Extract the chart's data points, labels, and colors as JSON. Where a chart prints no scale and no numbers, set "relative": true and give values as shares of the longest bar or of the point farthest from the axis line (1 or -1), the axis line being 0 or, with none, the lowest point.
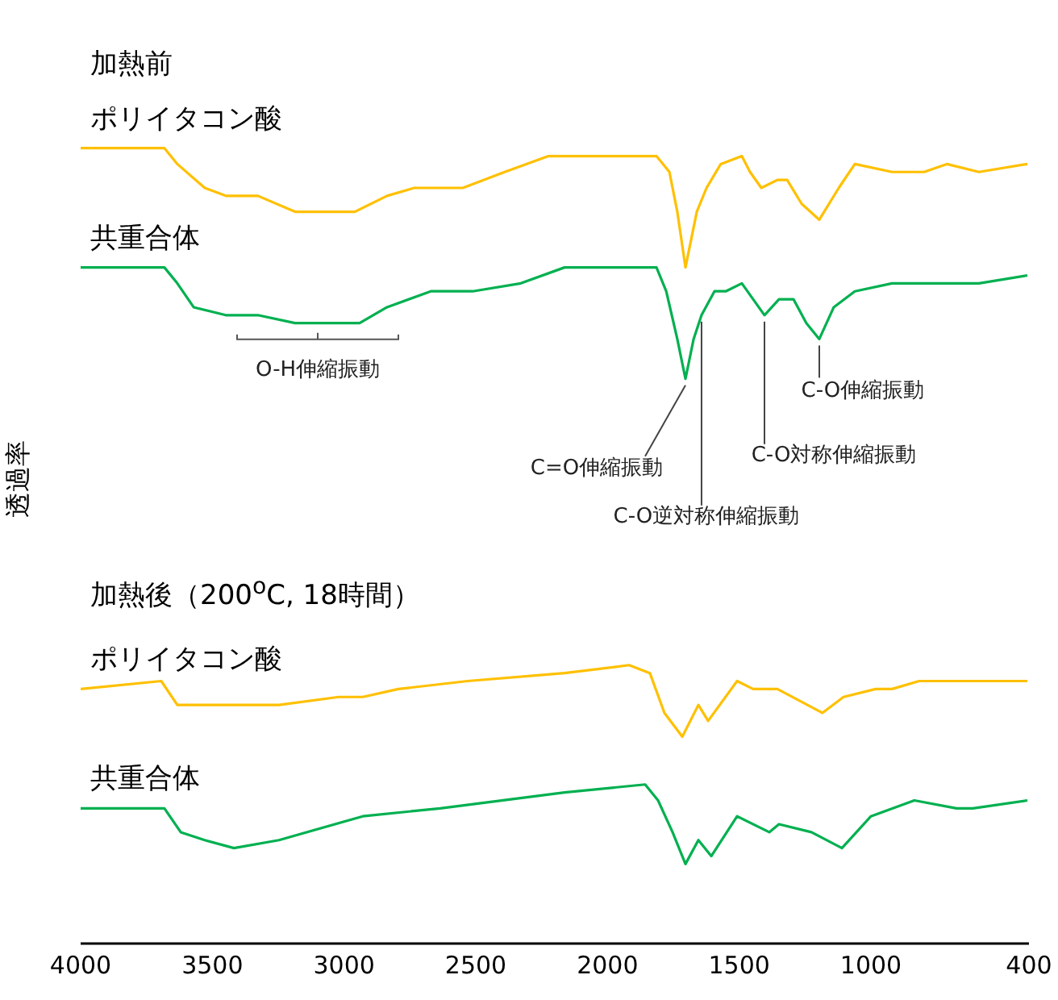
{
  "chart_data": {
    "type": "line",
    "ylabel": "透過率",
    "relative": true,
    "xlim": [
      4000,
      400
    ],
    "xticks": [
      4000,
      3500,
      3000,
      2500,
      2000,
      1500,
      1000,
      400
    ],
    "annotations": [
      "加熱前",
      "加熱後（200$^{o}$C, 18時間）",
      {
        "text": "O-H伸縮振動",
        "x": 3100,
        "y": 0.78
      },
      {
        "text": "C=O伸縮振動",
        "x": 1704,
        "y": 0.71
      },
      {
        "text": "C-O逆対称伸縮振動",
        "x": 1643,
        "y": 0.79
      },
      {
        "text": "C-O対称伸縮振動",
        "x": 1404,
        "y": 0.79
      },
      {
        "text": "C-O伸縮振動",
        "x": 1196,
        "y": 0.76
      }
    ],
    "series": [
      {
        "name": "ポリイタコン酸",
        "color": "#ffc000",
        "x": [
          4000,
          3682,
          3633,
          3529,
          3449,
          3327,
          3186,
          2959,
          2837,
          2733,
          2549,
          2390,
          2224,
          1814,
          1765,
          1735,
          1704,
          1661,
          1624,
          1570,
          1490,
          1459,
          1416,
          1355,
          1318,
          1263,
          1196,
          1122,
          1061,
          920,
          798,
          712,
          590,
          406
        ],
        "values": [
          1.0,
          1.0,
          0.98,
          0.95,
          0.94,
          0.94,
          0.92,
          0.92,
          0.94,
          0.95,
          0.95,
          0.97,
          0.99,
          0.99,
          0.97,
          0.92,
          0.85,
          0.92,
          0.95,
          0.98,
          0.99,
          0.97,
          0.95,
          0.96,
          0.96,
          0.93,
          0.91,
          0.95,
          0.98,
          0.97,
          0.97,
          0.98,
          0.97,
          0.98
        ]
      },
      {
        "name": "共重合体",
        "color": "#00b050",
        "x": [
          4000,
          3682,
          3633,
          3571,
          3449,
          3327,
          3186,
          3100,
          2941,
          2837,
          2671,
          2512,
          2329,
          2163,
          1814,
          1777,
          1735,
          1704,
          1673,
          1643,
          1594,
          1551,
          1490,
          1447,
          1404,
          1349,
          1294,
          1245,
          1196,
          1141,
          1061,
          920,
          712,
          590,
          406
        ],
        "values": [
          0.85,
          0.85,
          0.83,
          0.8,
          0.79,
          0.79,
          0.78,
          0.78,
          0.78,
          0.8,
          0.82,
          0.82,
          0.83,
          0.85,
          0.85,
          0.82,
          0.76,
          0.71,
          0.76,
          0.79,
          0.82,
          0.82,
          0.83,
          0.81,
          0.79,
          0.81,
          0.81,
          0.78,
          0.76,
          0.8,
          0.82,
          0.83,
          0.83,
          0.83,
          0.84
        ]
      },
      {
        "name": "ポリイタコン酸",
        "color": "#ffc000",
        "x": [
          4000,
          3694,
          3633,
          3571,
          3431,
          3247,
          3020,
          2929,
          2794,
          2531,
          2163,
          1918,
          1839,
          1784,
          1716,
          1655,
          1618,
          1508,
          1447,
          1355,
          1184,
          1104,
          982,
          920,
          817,
          590,
          406
        ],
        "values": [
          0.32,
          0.33,
          0.3,
          0.3,
          0.3,
          0.3,
          0.31,
          0.31,
          0.32,
          0.33,
          0.34,
          0.35,
          0.34,
          0.29,
          0.26,
          0.3,
          0.28,
          0.33,
          0.32,
          0.32,
          0.29,
          0.31,
          0.32,
          0.32,
          0.33,
          0.33,
          0.33
        ]
      },
      {
        "name": "共重合体",
        "color": "#00b050",
        "x": [
          4000,
          3682,
          3620,
          3529,
          3418,
          3247,
          2929,
          2635,
          2163,
          1857,
          1808,
          1753,
          1704,
          1655,
          1606,
          1508,
          1386,
          1349,
          1226,
          1110,
          1000,
          835,
          675,
          613,
          406
        ],
        "values": [
          0.17,
          0.17,
          0.14,
          0.13,
          0.12,
          0.13,
          0.16,
          0.17,
          0.19,
          0.2,
          0.18,
          0.14,
          0.1,
          0.13,
          0.11,
          0.16,
          0.14,
          0.15,
          0.14,
          0.12,
          0.16,
          0.18,
          0.17,
          0.17,
          0.18
        ]
      }
    ]
  }
}
